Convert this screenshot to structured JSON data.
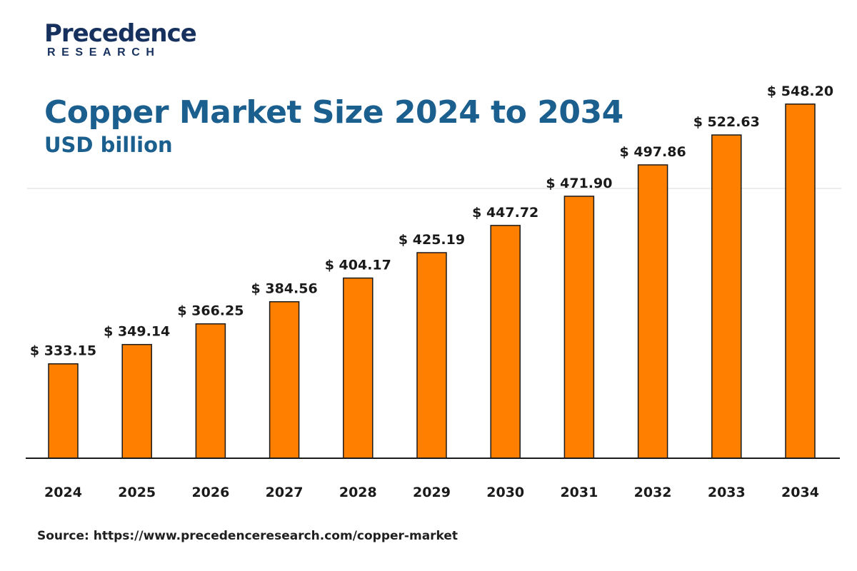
{
  "logo": {
    "word": "Precedence",
    "sub": "RESEARCH"
  },
  "chart_data": {
    "type": "bar",
    "title": "Copper Market Size 2024 to 2034",
    "subtitle": "USD billion",
    "categories": [
      "2024",
      "2025",
      "2026",
      "2027",
      "2028",
      "2029",
      "2030",
      "2031",
      "2032",
      "2033",
      "2034"
    ],
    "values": [
      333.15,
      349.14,
      366.25,
      384.56,
      404.17,
      425.19,
      447.72,
      471.9,
      497.86,
      522.63,
      548.2
    ],
    "value_labels": [
      "$ 333.15",
      "$ 349.14",
      "$ 366.25",
      "$ 384.56",
      "$ 404.17",
      "$ 425.19",
      "$ 447.72",
      "$ 471.90",
      "$ 497.86",
      "$ 522.63",
      "$ 548.20"
    ],
    "xlabel": "",
    "ylabel": "",
    "ylim": [
      255,
      580
    ],
    "grid": false,
    "legend": "none",
    "bar_color": "#ff7f00",
    "bar_outline": "#1a1a1a"
  },
  "source": {
    "text": "Source: https://www.precedenceresearch.com/copper-market"
  },
  "colors": {
    "title": "#1b5f8f",
    "logo": "#17315e"
  }
}
